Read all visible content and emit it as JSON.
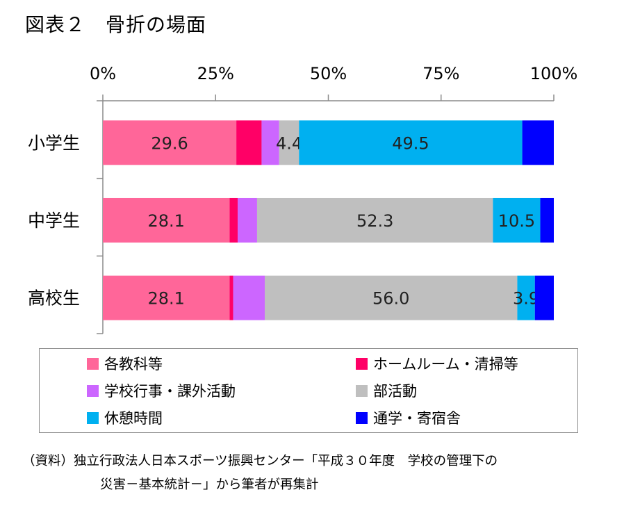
{
  "title": "図表２　骨折の場面",
  "chart_data": {
    "type": "bar",
    "orientation": "horizontal",
    "stacked": true,
    "xlim": [
      0,
      100
    ],
    "x_ticks": [
      "0%",
      "25%",
      "50%",
      "75%",
      "100%"
    ],
    "categories": [
      "小学生",
      "中学生",
      "高校生"
    ],
    "series": [
      {
        "name": "各教科等",
        "color": "#ff6699",
        "values": [
          29.6,
          28.1,
          28.1
        ],
        "labels": [
          "29.6",
          "28.1",
          "28.1"
        ]
      },
      {
        "name": "ホームルーム・清掃等",
        "color": "#ff0066",
        "values": [
          5.6,
          1.8,
          0.8
        ],
        "labels": [
          "",
          "",
          ""
        ]
      },
      {
        "name": "学校行事・課外活動",
        "color": "#cc66ff",
        "values": [
          3.9,
          4.3,
          7.0
        ],
        "labels": [
          "",
          "",
          ""
        ]
      },
      {
        "name": "部活動",
        "color": "#bfbfbf",
        "values": [
          4.4,
          52.3,
          56.0
        ],
        "labels": [
          "4.4",
          "52.3",
          "56.0"
        ]
      },
      {
        "name": "休憩時間",
        "color": "#00b0f0",
        "values": [
          49.5,
          10.5,
          3.9
        ],
        "labels": [
          "49.5",
          "10.5",
          "3.9"
        ]
      },
      {
        "name": "通学・寄宿舎",
        "color": "#0000ff",
        "values": [
          7.0,
          3.0,
          4.2
        ],
        "labels": [
          "",
          "",
          ""
        ]
      }
    ],
    "legend_position": "bottom"
  },
  "source": {
    "line1": "（資料）独立行政法人日本スポーツ振興センター「平成３０年度　学校の管理下の",
    "line2": "災害－基本統計－」から筆者が再集計"
  }
}
